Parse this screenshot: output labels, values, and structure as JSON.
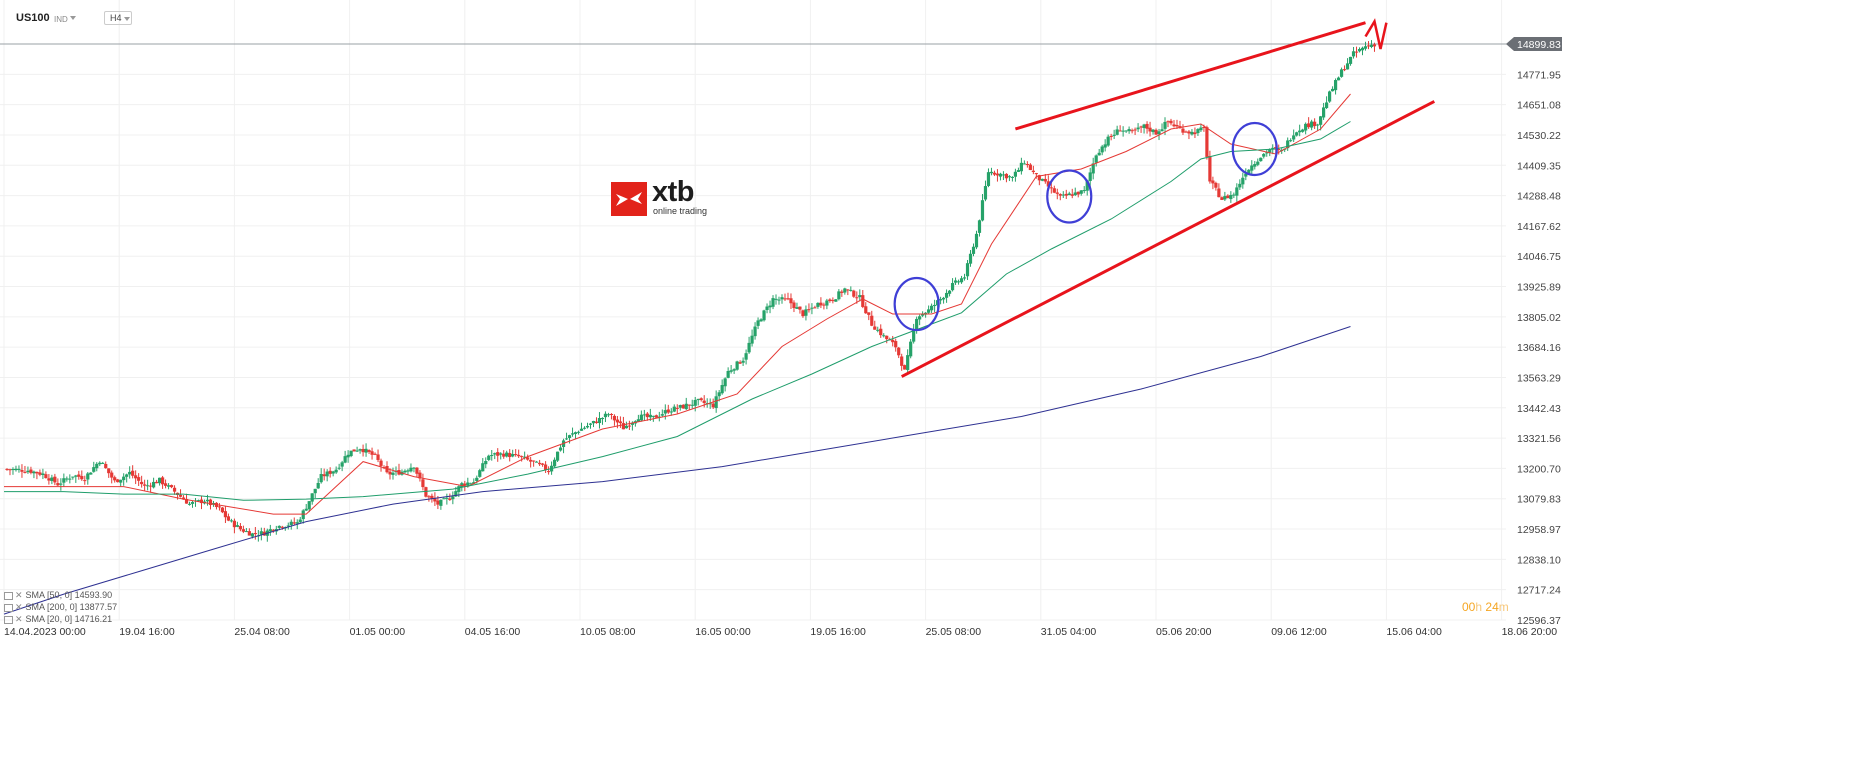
{
  "header": {
    "symbol": "US100",
    "symbol_tag": "IND",
    "timeframe": "H4"
  },
  "logo": {
    "name": "xtb",
    "tagline": "online trading",
    "brand_color": "#e2231a"
  },
  "current_price_label": "14899.83",
  "timer": {
    "hours": "00",
    "h_unit": "h",
    "minutes": "24",
    "m_unit": "m"
  },
  "indicators": [
    {
      "label": "SMA [50, 0]",
      "value": "14593.90",
      "color": "#1f9d6b"
    },
    {
      "label": "SMA [200, 0]",
      "value": "13877.57",
      "color": "#2e3192"
    },
    {
      "label": "SMA [20, 0]",
      "value": "14716.21",
      "color": "#e53935"
    }
  ],
  "chart_data": {
    "type": "candlestick",
    "symbol": "US100",
    "timeframe": "H4",
    "y_ticks": [
      "14899.83",
      "14771.95",
      "14651.08",
      "14530.22",
      "14409.35",
      "14288.48",
      "14167.62",
      "14046.75",
      "13925.89",
      "13805.02",
      "13684.16",
      "13563.29",
      "13442.43",
      "13321.56",
      "13200.70",
      "13079.83",
      "12958.97",
      "12838.10",
      "12717.24",
      "12596.37"
    ],
    "x_ticks": [
      "14.04.2023  00:00",
      "19.04  16:00",
      "25.04  08:00",
      "01.05  00:00",
      "04.05  16:00",
      "10.05  08:00",
      "16.05  00:00",
      "19.05  16:00",
      "25.05  08:00",
      "31.05  04:00",
      "05.06  20:00",
      "09.06  12:00",
      "15.06  04:00",
      "18.06  20:00"
    ],
    "ylim": [
      12596.37,
      14899.83
    ],
    "current_price": 14899.83,
    "up_color": "#26a269",
    "down_color": "#e53935",
    "close_path": [
      [
        0,
        13200
      ],
      [
        8,
        13195
      ],
      [
        13,
        13180
      ],
      [
        18,
        13140
      ],
      [
        23,
        13175
      ],
      [
        27,
        13165
      ],
      [
        32,
        13235
      ],
      [
        37,
        13150
      ],
      [
        42,
        13185
      ],
      [
        47,
        13130
      ],
      [
        52,
        13155
      ],
      [
        57,
        13110
      ],
      [
        62,
        13060
      ],
      [
        67,
        13075
      ],
      [
        72,
        13040
      ],
      [
        75,
        12995
      ],
      [
        79,
        12960
      ],
      [
        83,
        12940
      ],
      [
        87,
        12945
      ],
      [
        91,
        12970
      ],
      [
        98,
        12985
      ],
      [
        101,
        13050
      ],
      [
        106,
        13170
      ],
      [
        111,
        13200
      ],
      [
        115,
        13265
      ],
      [
        119,
        13285
      ],
      [
        124,
        13250
      ],
      [
        128,
        13180
      ],
      [
        133,
        13190
      ],
      [
        137,
        13215
      ],
      [
        141,
        13095
      ],
      [
        145,
        13060
      ],
      [
        149,
        13085
      ],
      [
        153,
        13140
      ],
      [
        157,
        13150
      ],
      [
        162,
        13255
      ],
      [
        167,
        13260
      ],
      [
        172,
        13250
      ],
      [
        177,
        13225
      ],
      [
        182,
        13195
      ],
      [
        187,
        13315
      ],
      [
        192,
        13355
      ],
      [
        197,
        13385
      ],
      [
        202,
        13420
      ],
      [
        207,
        13365
      ],
      [
        212,
        13410
      ],
      [
        217,
        13405
      ],
      [
        222,
        13435
      ],
      [
        227,
        13450
      ],
      [
        232,
        13470
      ],
      [
        237,
        13455
      ],
      [
        242,
        13590
      ],
      [
        247,
        13640
      ],
      [
        252,
        13790
      ],
      [
        257,
        13880
      ],
      [
        262,
        13875
      ],
      [
        267,
        13820
      ],
      [
        272,
        13860
      ],
      [
        277,
        13880
      ],
      [
        281,
        13920
      ],
      [
        286,
        13885
      ],
      [
        290,
        13780
      ],
      [
        294,
        13730
      ],
      [
        298,
        13690
      ],
      [
        301,
        13590
      ],
      [
        305,
        13810
      ],
      [
        309,
        13835
      ],
      [
        313,
        13880
      ],
      [
        317,
        13935
      ],
      [
        321,
        13970
      ],
      [
        325,
        14140
      ],
      [
        329,
        14390
      ],
      [
        333,
        14380
      ],
      [
        337,
        14365
      ],
      [
        341,
        14430
      ],
      [
        345,
        14370
      ],
      [
        349,
        14330
      ],
      [
        353,
        14285
      ],
      [
        357,
        14300
      ],
      [
        361,
        14310
      ],
      [
        365,
        14460
      ],
      [
        369,
        14520
      ],
      [
        373,
        14560
      ],
      [
        377,
        14545
      ],
      [
        381,
        14570
      ],
      [
        385,
        14545
      ],
      [
        389,
        14590
      ],
      [
        393,
        14560
      ],
      [
        397,
        14545
      ],
      [
        401,
        14560
      ],
      [
        403,
        14350
      ],
      [
        407,
        14280
      ],
      [
        411,
        14300
      ],
      [
        415,
        14390
      ],
      [
        419,
        14440
      ],
      [
        423,
        14480
      ],
      [
        427,
        14470
      ],
      [
        431,
        14545
      ],
      [
        435,
        14575
      ],
      [
        439,
        14585
      ],
      [
        443,
        14700
      ],
      [
        447,
        14790
      ],
      [
        451,
        14860
      ],
      [
        455,
        14890
      ],
      [
        458,
        14899.83
      ]
    ],
    "series": [
      {
        "name": "SMA [20, 0]",
        "color": "#e53935",
        "points": [
          [
            0,
            13130
          ],
          [
            40,
            13130
          ],
          [
            60,
            13080
          ],
          [
            90,
            13020
          ],
          [
            101,
            13020
          ],
          [
            120,
            13230
          ],
          [
            137,
            13170
          ],
          [
            155,
            13130
          ],
          [
            175,
            13250
          ],
          [
            200,
            13360
          ],
          [
            225,
            13420
          ],
          [
            245,
            13500
          ],
          [
            260,
            13690
          ],
          [
            275,
            13800
          ],
          [
            287,
            13880
          ],
          [
            297,
            13820
          ],
          [
            310,
            13820
          ],
          [
            320,
            13860
          ],
          [
            330,
            14100
          ],
          [
            345,
            14370
          ],
          [
            360,
            14400
          ],
          [
            375,
            14470
          ],
          [
            390,
            14560
          ],
          [
            400,
            14580
          ],
          [
            410,
            14500
          ],
          [
            425,
            14460
          ],
          [
            440,
            14560
          ],
          [
            450,
            14700
          ]
        ]
      },
      {
        "name": "SMA [50, 0]",
        "color": "#1f9d6b",
        "points": [
          [
            0,
            13110
          ],
          [
            20,
            13110
          ],
          [
            40,
            13100
          ],
          [
            60,
            13100
          ],
          [
            80,
            13075
          ],
          [
            101,
            13080
          ],
          [
            120,
            13090
          ],
          [
            150,
            13120
          ],
          [
            175,
            13180
          ],
          [
            200,
            13250
          ],
          [
            225,
            13330
          ],
          [
            250,
            13480
          ],
          [
            270,
            13580
          ],
          [
            290,
            13690
          ],
          [
            310,
            13780
          ],
          [
            320,
            13825
          ],
          [
            335,
            13980
          ],
          [
            350,
            14080
          ],
          [
            370,
            14200
          ],
          [
            390,
            14350
          ],
          [
            400,
            14440
          ],
          [
            410,
            14470
          ],
          [
            425,
            14480
          ],
          [
            440,
            14520
          ],
          [
            450,
            14590
          ]
        ]
      },
      {
        "name": "SMA [200, 0]",
        "color": "#2e3192",
        "points": [
          [
            0,
            12620
          ],
          [
            20,
            12700
          ],
          [
            45,
            12790
          ],
          [
            70,
            12880
          ],
          [
            101,
            12990
          ],
          [
            130,
            13060
          ],
          [
            160,
            13110
          ],
          [
            200,
            13150
          ],
          [
            240,
            13210
          ],
          [
            270,
            13270
          ],
          [
            300,
            13330
          ],
          [
            340,
            13410
          ],
          [
            380,
            13520
          ],
          [
            420,
            13650
          ],
          [
            450,
            13770
          ]
        ]
      }
    ],
    "annotations": {
      "upper_trendline": [
        [
          338,
          14560
        ],
        [
          455,
          14985
        ]
      ],
      "lower_trendline": [
        [
          300,
          13570
        ],
        [
          478,
          14670
        ]
      ],
      "circles": [
        [
          305,
          13860
        ],
        [
          356,
          14290
        ],
        [
          418,
          14480
        ]
      ],
      "projection": [
        [
          455,
          14930
        ],
        [
          458,
          14990
        ],
        [
          460,
          14880
        ],
        [
          462,
          14985
        ]
      ]
    }
  }
}
